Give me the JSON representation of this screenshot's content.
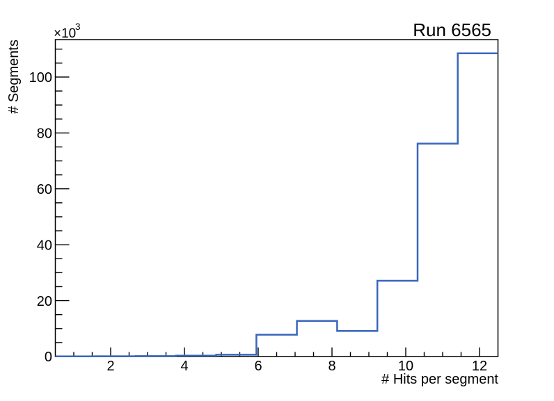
{
  "header": {
    "title": "Run 6565"
  },
  "axes": {
    "x_title": "# Hits per segment",
    "y_title": "# Segments",
    "y_multiplier_base": "×10",
    "y_multiplier_exp": "3"
  },
  "colors": {
    "background": "#ffffff",
    "axis": "#000000",
    "hist_line": "#3866bd"
  },
  "chart_data": {
    "type": "bar",
    "subtype": "step-histogram",
    "title": "Run 6565",
    "xlabel": "# Hits per segment",
    "ylabel": "# Segments",
    "y_unit_multiplier": 1000,
    "xlim": [
      0.5,
      12.5
    ],
    "ylim": [
      0,
      113400
    ],
    "grid": false,
    "legend": false,
    "bin_edges": [
      0.5,
      1.59,
      2.68,
      3.77,
      4.86,
      5.95,
      7.05,
      8.14,
      9.23,
      10.32,
      11.41,
      12.5
    ],
    "values": [
      40,
      90,
      140,
      300,
      650,
      7800,
      12750,
      9150,
      27100,
      76200,
      108500
    ],
    "x_major_ticks": [
      2,
      4,
      6,
      8,
      10,
      12
    ],
    "x_tick_labels": [
      "2",
      "4",
      "6",
      "8",
      "10",
      "12"
    ],
    "x_minor_step": 0.5,
    "y_major_ticks": [
      0,
      20000,
      40000,
      60000,
      80000,
      100000
    ],
    "y_tick_labels": [
      "0",
      "20",
      "40",
      "60",
      "80",
      "100"
    ],
    "y_minor_step": 5000
  }
}
